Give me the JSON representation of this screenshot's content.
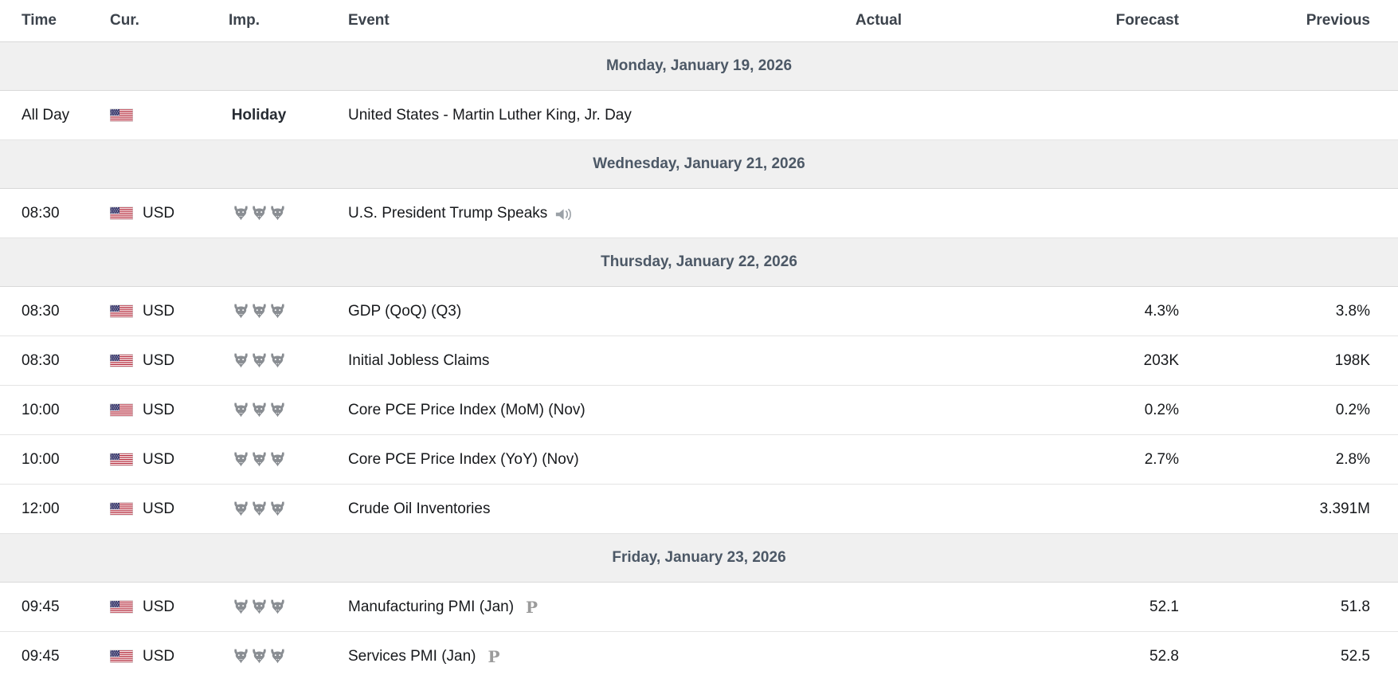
{
  "table": {
    "columns": [
      {
        "key": "time",
        "label": "Time"
      },
      {
        "key": "cur",
        "label": "Cur."
      },
      {
        "key": "imp",
        "label": "Imp."
      },
      {
        "key": "event",
        "label": "Event"
      },
      {
        "key": "actual",
        "label": "Actual"
      },
      {
        "key": "forecast",
        "label": "Forecast"
      },
      {
        "key": "previous",
        "label": "Previous"
      }
    ],
    "rows": [
      {
        "type": "day",
        "label": "Monday, January 19, 2026"
      },
      {
        "type": "event",
        "time": "All Day",
        "flag": "US",
        "currency": "",
        "importance_label": "Holiday",
        "importance_bulls": 0,
        "event": "United States - Martin Luther King, Jr. Day",
        "marker": "",
        "actual": "",
        "forecast": "",
        "previous": ""
      },
      {
        "type": "day",
        "label": "Wednesday, January 21, 2026"
      },
      {
        "type": "event",
        "time": "08:30",
        "flag": "US",
        "currency": "USD",
        "importance_label": "",
        "importance_bulls": 3,
        "event": "U.S. President Trump Speaks",
        "marker": "speaker",
        "actual": "",
        "forecast": "",
        "previous": ""
      },
      {
        "type": "day",
        "label": "Thursday, January 22, 2026"
      },
      {
        "type": "event",
        "time": "08:30",
        "flag": "US",
        "currency": "USD",
        "importance_label": "",
        "importance_bulls": 3,
        "event": "GDP (QoQ) (Q3)",
        "marker": "",
        "actual": "",
        "forecast": "4.3%",
        "previous": "3.8%"
      },
      {
        "type": "event",
        "time": "08:30",
        "flag": "US",
        "currency": "USD",
        "importance_label": "",
        "importance_bulls": 3,
        "event": "Initial Jobless Claims",
        "marker": "",
        "actual": "",
        "forecast": "203K",
        "previous": "198K"
      },
      {
        "type": "event",
        "time": "10:00",
        "flag": "US",
        "currency": "USD",
        "importance_label": "",
        "importance_bulls": 3,
        "event": "Core PCE Price Index (MoM) (Nov)",
        "marker": "",
        "actual": "",
        "forecast": "0.2%",
        "previous": "0.2%"
      },
      {
        "type": "event",
        "time": "10:00",
        "flag": "US",
        "currency": "USD",
        "importance_label": "",
        "importance_bulls": 3,
        "event": "Core PCE Price Index (YoY) (Nov)",
        "marker": "",
        "actual": "",
        "forecast": "2.7%",
        "previous": "2.8%"
      },
      {
        "type": "event",
        "time": "12:00",
        "flag": "US",
        "currency": "USD",
        "importance_label": "",
        "importance_bulls": 3,
        "event": "Crude Oil Inventories",
        "marker": "",
        "actual": "",
        "forecast": "",
        "previous": "3.391M"
      },
      {
        "type": "day",
        "label": "Friday, January 23, 2026"
      },
      {
        "type": "event",
        "time": "09:45",
        "flag": "US",
        "currency": "USD",
        "importance_label": "",
        "importance_bulls": 3,
        "event": "Manufacturing PMI (Jan)",
        "marker": "preliminary",
        "actual": "",
        "forecast": "52.1",
        "previous": "51.8"
      },
      {
        "type": "event",
        "time": "09:45",
        "flag": "US",
        "currency": "USD",
        "importance_label": "",
        "importance_bulls": 3,
        "event": "Services PMI (Jan)",
        "marker": "preliminary",
        "actual": "",
        "forecast": "52.8",
        "previous": "52.5"
      }
    ]
  },
  "icons": {
    "flag": "us-flag-icon",
    "importance": "bull-icon",
    "speech": "speaker-icon",
    "preliminary_glyph": "P"
  },
  "colors": {
    "day_band_bg": "#f0f0f0",
    "day_band_border": "#d9d9d9",
    "day_text": "#4c5866",
    "header_text": "#3c434c",
    "body_text": "#17191c",
    "row_border": "#e4e4e4",
    "bull_gray": "#8a8e93",
    "muted_icon_gray": "#9ba1a7",
    "preliminary_gray": "#9b9b9b",
    "flag_red": "#b22234",
    "flag_blue": "#3c3b6e"
  }
}
